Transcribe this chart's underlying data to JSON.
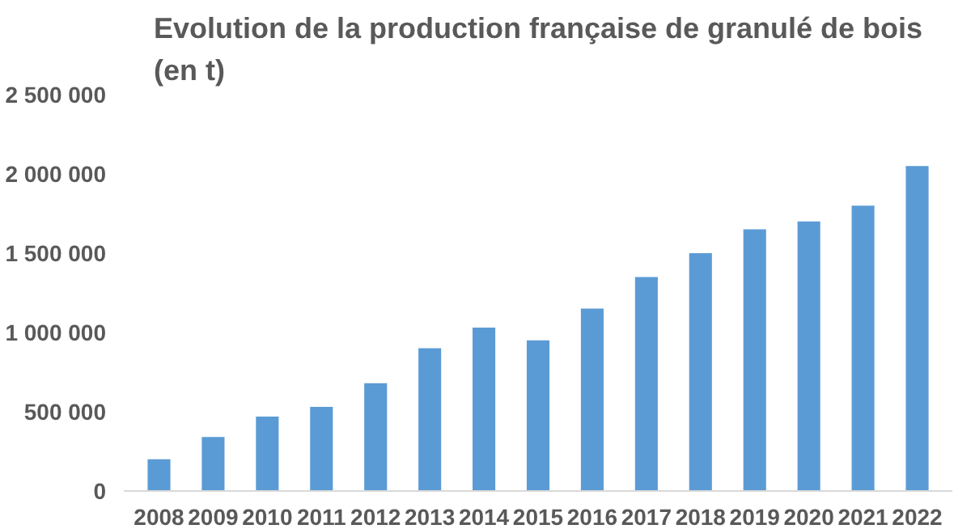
{
  "chart_data": {
    "type": "bar",
    "title": "Evolution de la production française de granulé de bois (en t)",
    "categories": [
      "2008",
      "2009",
      "2010",
      "2011",
      "2012",
      "2013",
      "2014",
      "2015",
      "2016",
      "2017",
      "2018",
      "2019",
      "2020",
      "2021",
      "2022"
    ],
    "values": [
      200000,
      340000,
      470000,
      530000,
      680000,
      900000,
      1030000,
      950000,
      1150000,
      1350000,
      1500000,
      1650000,
      1700000,
      1800000,
      2050000
    ],
    "color": "#5b9bd5",
    "ylim": [
      0,
      2500000
    ],
    "yticks": [
      0,
      {
        "value": 500000,
        "label": "500 000"
      },
      {
        "value": 1000000,
        "label": "1 000 000"
      },
      {
        "value": 1500000,
        "label": "1 500 000"
      },
      {
        "value": 2000000,
        "label": "2 000 000"
      },
      {
        "value": 2500000,
        "label": "2 500 000"
      }
    ],
    "grid": false
  }
}
